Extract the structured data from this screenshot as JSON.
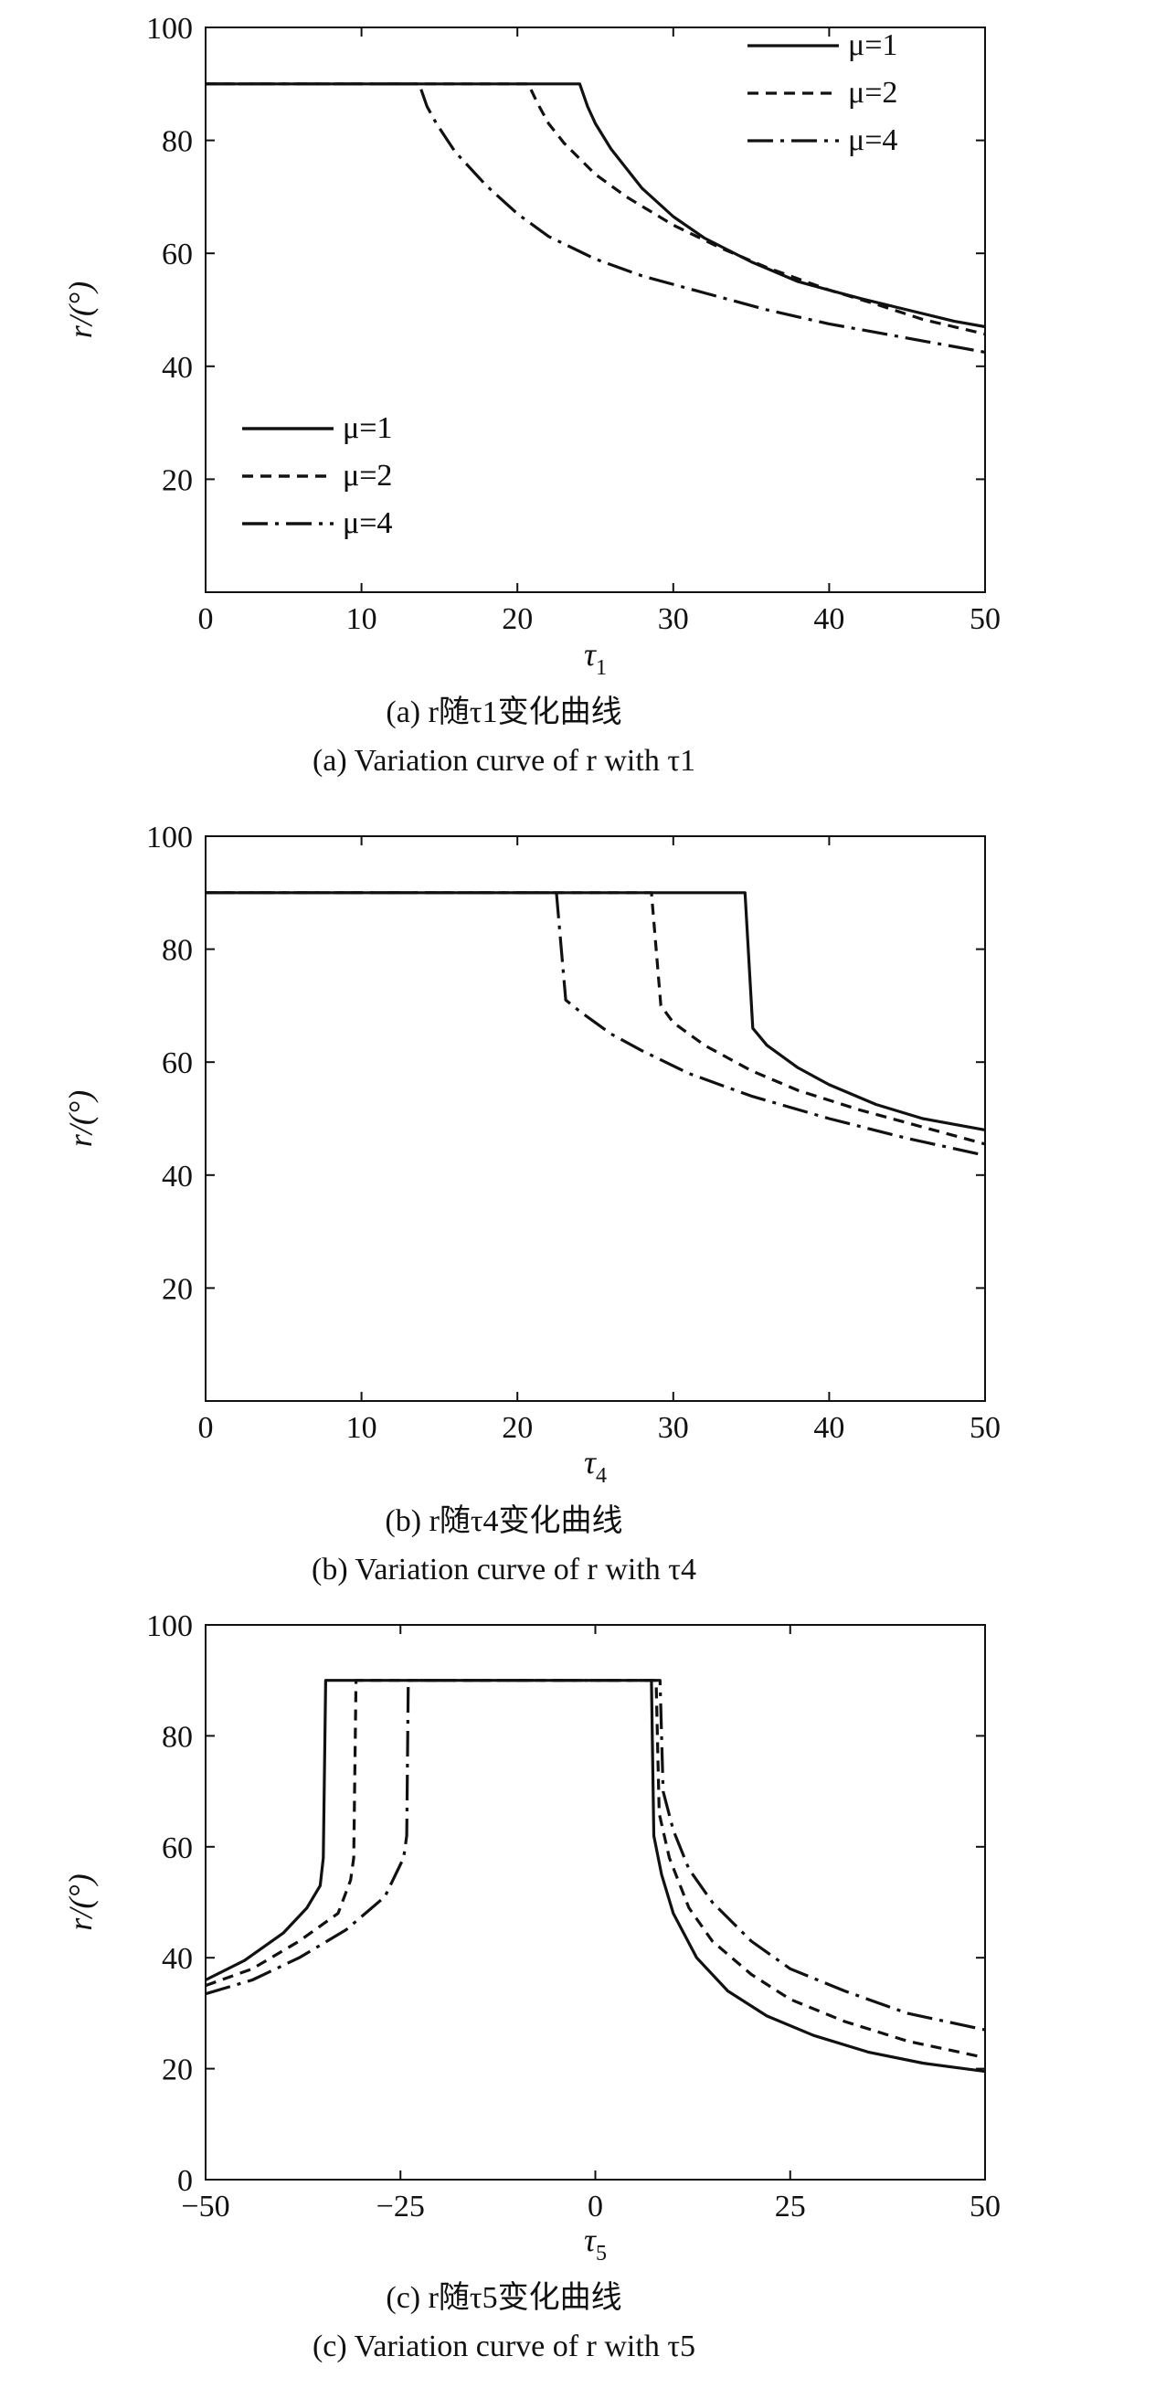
{
  "chart_data": [
    {
      "type": "line",
      "panel_id": "a",
      "ylabel": "r/(°)",
      "xlabel": "τ1",
      "xlim": [
        0,
        50
      ],
      "ylim": [
        0,
        100
      ],
      "x_ticks": [
        "0",
        "10",
        "20",
        "30",
        "40",
        "50"
      ],
      "y_ticks": [
        "20",
        "40",
        "60",
        "80",
        "100"
      ],
      "legend_position": "bottom-left",
      "caption_cn": "(a) r随τ1变化曲线",
      "caption_en": "(a) Variation curve of r with τ1",
      "series": [
        {
          "name": "μ=1",
          "style": "solid",
          "points": [
            [
              0,
              90
            ],
            [
              24,
              90
            ],
            [
              24.5,
              86
            ],
            [
              25,
              83
            ],
            [
              26,
              78.5
            ],
            [
              27,
              75
            ],
            [
              28,
              71.5
            ],
            [
              30,
              66.5
            ],
            [
              32,
              62.7
            ],
            [
              35,
              58.5
            ],
            [
              38,
              55
            ],
            [
              40,
              53.5
            ],
            [
              42,
              52
            ],
            [
              45,
              50
            ],
            [
              48,
              48
            ],
            [
              50,
              47
            ]
          ]
        },
        {
          "name": "μ=2",
          "style": "dashed",
          "points": [
            [
              0,
              90
            ],
            [
              20.7,
              90
            ],
            [
              21.3,
              86.5
            ],
            [
              22,
              83
            ],
            [
              23,
              79.5
            ],
            [
              25,
              74
            ],
            [
              27,
              70
            ],
            [
              30,
              65
            ],
            [
              33,
              61
            ],
            [
              36,
              57.5
            ],
            [
              40,
              53.5
            ],
            [
              43,
              51
            ],
            [
              46,
              48.3
            ],
            [
              50,
              45.7
            ]
          ]
        },
        {
          "name": "μ=4",
          "style": "dashdot",
          "points": [
            [
              0,
              90
            ],
            [
              13.7,
              90
            ],
            [
              14.2,
              86
            ],
            [
              14.8,
              83
            ],
            [
              16,
              78
            ],
            [
              18,
              72
            ],
            [
              20,
              67
            ],
            [
              22,
              63
            ],
            [
              25,
              59
            ],
            [
              28,
              56
            ],
            [
              32,
              53
            ],
            [
              36,
              50
            ],
            [
              40,
              47.5
            ],
            [
              45,
              45
            ],
            [
              50,
              42.5
            ]
          ]
        }
      ]
    },
    {
      "type": "line",
      "panel_id": "b",
      "ylabel": "r/(°)",
      "xlabel": "τ4",
      "xlim": [
        0,
        50
      ],
      "ylim": [
        0,
        100
      ],
      "x_ticks": [
        "0",
        "10",
        "20",
        "30",
        "40",
        "50"
      ],
      "y_ticks": [
        "20",
        "40",
        "60",
        "80",
        "100"
      ],
      "legend_position": "bottom-left",
      "caption_cn": "(b) r随τ4变化曲线",
      "caption_en": "(b) Variation curve of r with τ4",
      "series": [
        {
          "name": "μ=1",
          "style": "solid",
          "points": [
            [
              0,
              90
            ],
            [
              34.6,
              90
            ],
            [
              35.1,
              66
            ],
            [
              36,
              63
            ],
            [
              38,
              59
            ],
            [
              40,
              56
            ],
            [
              43,
              52.5
            ],
            [
              46,
              50
            ],
            [
              50,
              48
            ]
          ]
        },
        {
          "name": "μ=2",
          "style": "dashed",
          "points": [
            [
              0,
              90
            ],
            [
              28.6,
              90
            ],
            [
              29.2,
              70
            ],
            [
              30,
              67
            ],
            [
              32,
              63
            ],
            [
              35,
              58.5
            ],
            [
              38,
              55
            ],
            [
              42,
              51.5
            ],
            [
              46,
              48.5
            ],
            [
              50,
              45.5
            ]
          ]
        },
        {
          "name": "μ=4",
          "style": "dashdot",
          "points": [
            [
              0,
              90
            ],
            [
              22.5,
              90
            ],
            [
              23.1,
              71
            ],
            [
              24,
              69
            ],
            [
              26,
              65
            ],
            [
              28,
              62
            ],
            [
              31,
              58
            ],
            [
              35,
              54
            ],
            [
              40,
              50
            ],
            [
              45,
              46.5
            ],
            [
              50,
              43.5
            ]
          ]
        }
      ]
    },
    {
      "type": "line",
      "panel_id": "c",
      "ylabel": "r/(°)",
      "xlabel": "τ5",
      "xlim": [
        -50,
        50
      ],
      "ylim": [
        0,
        100
      ],
      "x_ticks": [
        "-50",
        "-25",
        "0",
        "25",
        "50"
      ],
      "y_ticks": [
        "0",
        "20",
        "40",
        "60",
        "80",
        "100"
      ],
      "legend_position": "top-right",
      "caption_cn": "(c) r随τ5变化曲线",
      "caption_en": "(c) Variation curve of r with τ5",
      "series": [
        {
          "name": "μ=1",
          "style": "solid",
          "points": [
            [
              -50,
              36
            ],
            [
              -45,
              39.5
            ],
            [
              -40,
              44.5
            ],
            [
              -37,
              49
            ],
            [
              -35.3,
              53
            ],
            [
              -34.9,
              58
            ],
            [
              -34.6,
              90
            ],
            [
              7.2,
              90
            ],
            [
              7.5,
              62
            ],
            [
              8.5,
              55
            ],
            [
              10,
              48
            ],
            [
              13,
              40
            ],
            [
              17,
              34
            ],
            [
              22,
              29.5
            ],
            [
              28,
              26
            ],
            [
              35,
              23
            ],
            [
              42,
              21
            ],
            [
              50,
              19.5
            ]
          ]
        },
        {
          "name": "μ=2",
          "style": "dashed",
          "points": [
            [
              -50,
              35
            ],
            [
              -44,
              38
            ],
            [
              -38,
              43
            ],
            [
              -33,
              48
            ],
            [
              -31.4,
              54
            ],
            [
              -31,
              58
            ],
            [
              -30.7,
              90
            ],
            [
              7.8,
              90
            ],
            [
              8.2,
              66
            ],
            [
              9.5,
              58
            ],
            [
              12,
              49
            ],
            [
              15,
              43
            ],
            [
              20,
              37
            ],
            [
              25,
              32.5
            ],
            [
              32,
              28.5
            ],
            [
              40,
              25
            ],
            [
              50,
              22
            ]
          ]
        },
        {
          "name": "μ=4",
          "style": "dashdot",
          "points": [
            [
              -50,
              33.5
            ],
            [
              -44,
              36
            ],
            [
              -38,
              40
            ],
            [
              -32,
              45
            ],
            [
              -27,
              51
            ],
            [
              -24.6,
              58
            ],
            [
              -24.2,
              62
            ],
            [
              -24,
              90
            ],
            [
              8.3,
              90
            ],
            [
              8.7,
              70
            ],
            [
              10,
              63
            ],
            [
              12,
              56
            ],
            [
              15,
              50
            ],
            [
              20,
              43
            ],
            [
              25,
              38
            ],
            [
              32,
              34
            ],
            [
              40,
              30
            ],
            [
              50,
              27
            ]
          ]
        }
      ]
    }
  ]
}
